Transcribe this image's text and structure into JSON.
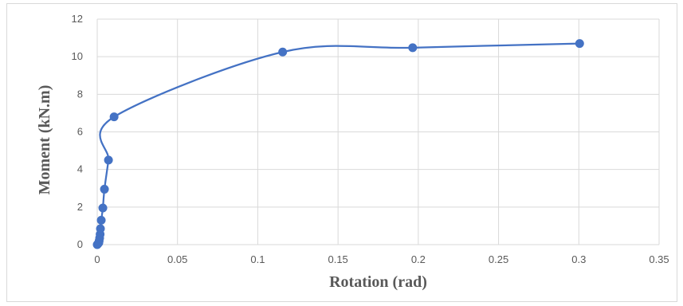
{
  "chart_data": {
    "type": "scatter",
    "title": "",
    "xlabel": "Rotation (rad)",
    "ylabel": "Moment (kN.m)",
    "xlim": [
      0,
      0.35
    ],
    "ylim": [
      0,
      12
    ],
    "xticks": [
      "0",
      "0.05",
      "0.1",
      "0.15",
      "0.2",
      "0.25",
      "0.3",
      "0.35"
    ],
    "yticks": [
      "0",
      "2",
      "4",
      "6",
      "8",
      "10",
      "12"
    ],
    "grid": true,
    "legend": "none",
    "smooth_line": true,
    "series": [
      {
        "color": "#4472c4",
        "x": [
          0.0,
          0.0005,
          0.001,
          0.0012,
          0.0015,
          0.0018,
          0.002,
          0.0025,
          0.0035,
          0.0045,
          0.007,
          0.0105,
          0.1155,
          0.1965,
          0.3005
        ],
        "y": [
          0.0,
          0.05,
          0.1,
          0.2,
          0.35,
          0.55,
          0.85,
          1.3,
          1.95,
          2.95,
          4.5,
          6.8,
          10.25,
          10.48,
          10.7
        ]
      }
    ]
  }
}
